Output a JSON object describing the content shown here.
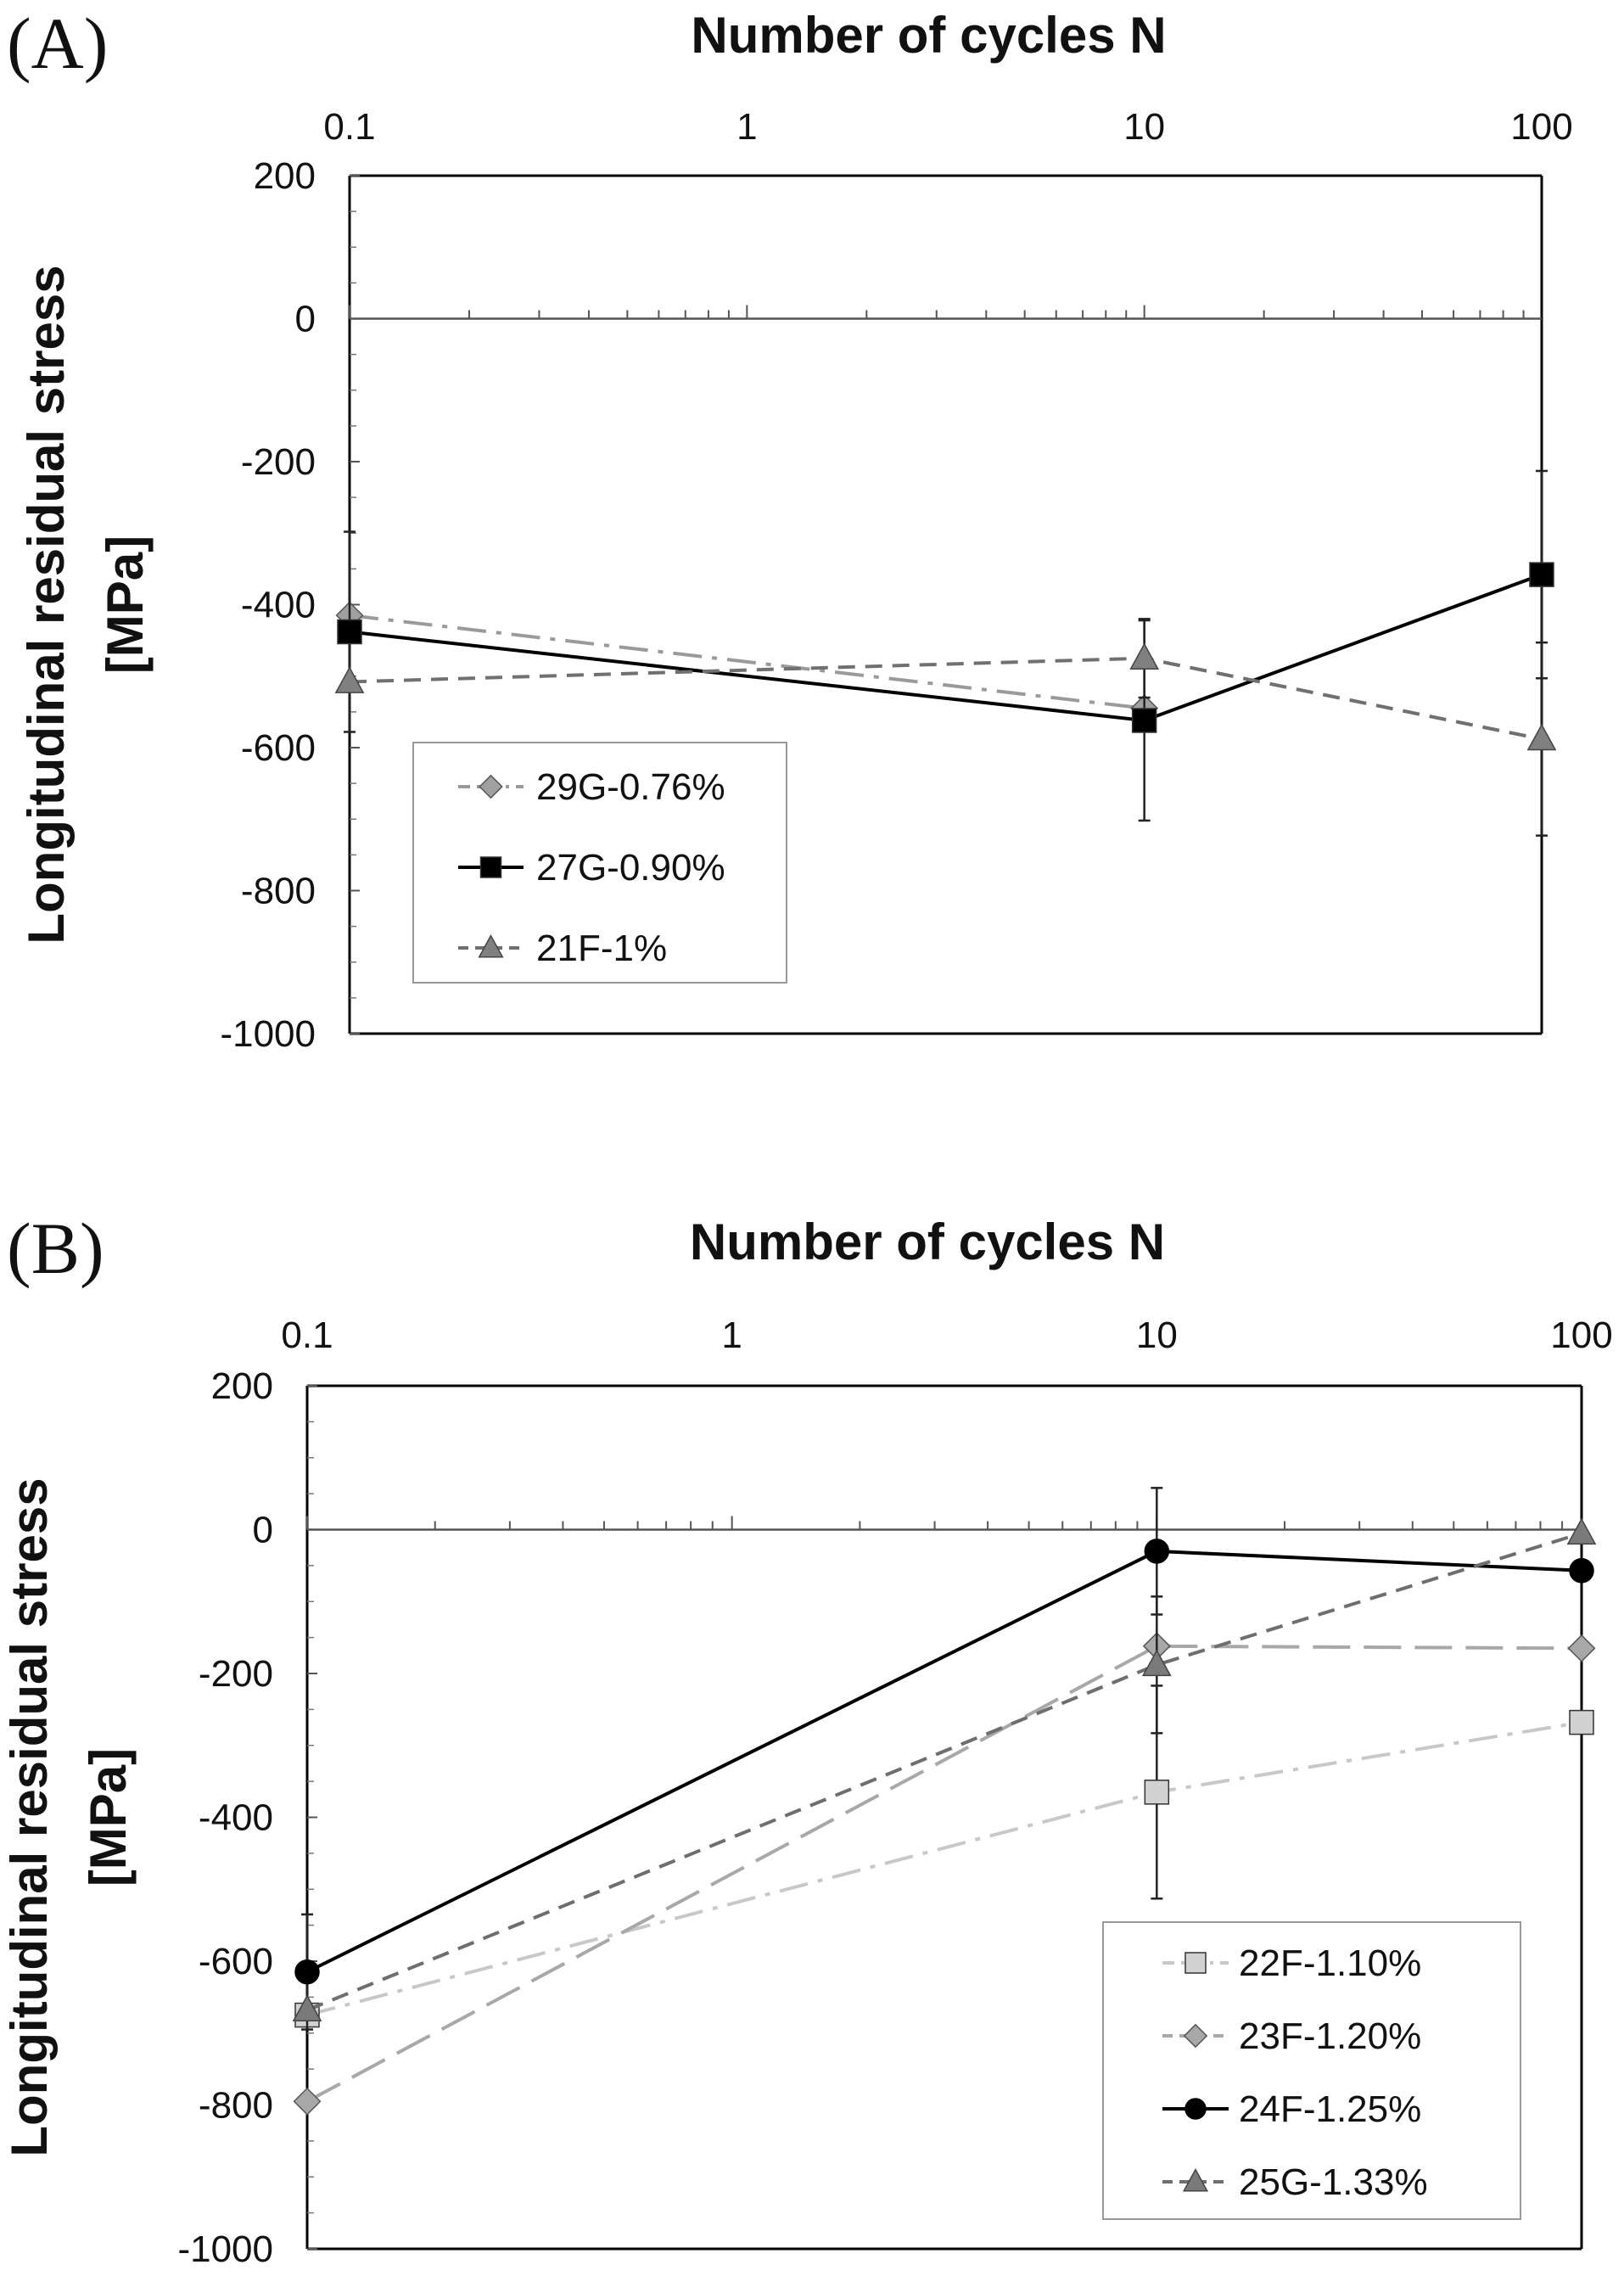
{
  "chart_data": [
    {
      "type": "line",
      "panel_label": "(A)",
      "xlabel": "Number of cycles N",
      "ylabel_lines": [
        "Longitudinal residual stress",
        "[MPa]"
      ],
      "x_scale": "log",
      "x_position": "top",
      "xlim": [
        0.1,
        100
      ],
      "ylim": [
        -1000,
        200
      ],
      "x_ticks": [
        "0.1",
        "1",
        "10",
        "100"
      ],
      "y_ticks": [
        "200",
        "0",
        "-200",
        "-400",
        "-600",
        "-800",
        "-1000"
      ],
      "legend_position": "bottom-left",
      "series": [
        {
          "name": "29G-0.76%",
          "x": [
            0.1,
            10,
            100
          ],
          "y": [
            -415,
            -545,
            null
          ],
          "yerr": [
            null,
            null,
            null
          ],
          "marker": "diamond",
          "line_style": "dash-dot",
          "color": "#9a9a9a",
          "marker_color": "#a0a0a0"
        },
        {
          "name": "27G-0.90%",
          "x": [
            0.1,
            10,
            100
          ],
          "y": [
            -438,
            -562,
            -358
          ],
          "yerr": [
            140,
            140,
            145
          ],
          "marker": "square",
          "line_style": "solid",
          "color": "#000000",
          "marker_color": "#000000"
        },
        {
          "name": "21F-1%",
          "x": [
            0.1,
            10,
            100
          ],
          "y": [
            -508,
            -475,
            -588
          ],
          "yerr": [
            null,
            55,
            135
          ],
          "marker": "triangle",
          "line_style": "dash",
          "color": "#707070",
          "marker_color": "#808080"
        }
      ]
    },
    {
      "type": "line",
      "panel_label": "(B)",
      "xlabel": "Number of cycles N",
      "ylabel_lines": [
        "Longitudinal residual stress",
        "[MPa]"
      ],
      "x_scale": "log",
      "x_position": "top",
      "xlim": [
        0.1,
        100
      ],
      "ylim": [
        -1000,
        200
      ],
      "x_ticks": [
        "0.1",
        "1",
        "10",
        "100"
      ],
      "y_ticks": [
        "200",
        "0",
        "-200",
        "-400",
        "-600",
        "-800",
        "-1000"
      ],
      "legend_position": "bottom-right",
      "series": [
        {
          "name": "22F-1.10%",
          "x": [
            0.1,
            10,
            100
          ],
          "y": [
            -675,
            -365,
            -268
          ],
          "yerr": [
            null,
            148,
            null
          ],
          "marker": "square",
          "line_style": "dash-dot",
          "color": "#c8c8c8",
          "marker_color": "#d2d2d2"
        },
        {
          "name": "23F-1.20%",
          "x": [
            0.1,
            10,
            100
          ],
          "y": [
            -795,
            -162,
            -165
          ],
          "yerr": [
            null,
            null,
            null
          ],
          "marker": "diamond",
          "line_style": "long-dash",
          "color": "#a8a8a8",
          "marker_color": "#a8a8a8"
        },
        {
          "name": "24F-1.25%",
          "x": [
            0.1,
            10,
            100
          ],
          "y": [
            -615,
            -30,
            -57
          ],
          "yerr": [
            80,
            88,
            null
          ],
          "marker": "circle",
          "line_style": "solid",
          "color": "#000000",
          "marker_color": "#000000"
        },
        {
          "name": "25G-1.33%",
          "x": [
            0.1,
            10,
            100
          ],
          "y": [
            -668,
            -188,
            -5
          ],
          "yerr": [
            null,
            95,
            null
          ],
          "marker": "triangle",
          "line_style": "dash",
          "color": "#6e6e6e",
          "marker_color": "#7a7a7a"
        }
      ]
    }
  ]
}
